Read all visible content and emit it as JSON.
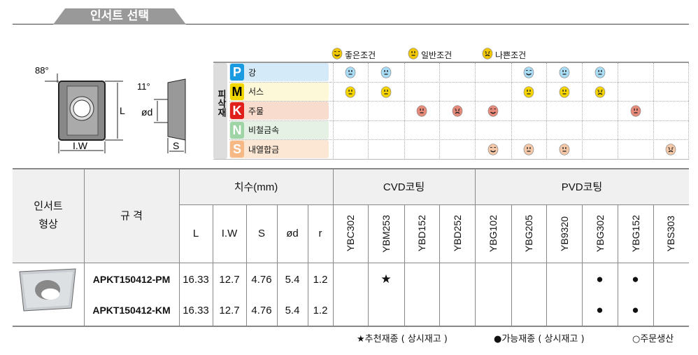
{
  "title": "인서트 선택",
  "diagram": {
    "angle_top": "88°",
    "angle_side": "11°",
    "label_L": "L",
    "label_IW": "I.W",
    "label_d": "ød",
    "label_S": "S"
  },
  "condition_legend": [
    {
      "icon": "good-face",
      "label": "좋은조건"
    },
    {
      "icon": "normal-face",
      "label": "일반조건"
    },
    {
      "icon": "bad-face",
      "label": "나쁜조건"
    }
  ],
  "material_label": "피삭재",
  "materials": [
    {
      "code": "P",
      "name": "강",
      "color": "#1a9ae0",
      "bg": "#d4eaf8",
      "conditions": [
        "normal",
        "normal",
        "",
        "",
        "",
        "good",
        "normal",
        "normal",
        "",
        ""
      ]
    },
    {
      "code": "M",
      "name": "서스",
      "color": "#f2d600",
      "bg": "#fdf9d8",
      "conditions": [
        "normal",
        "normal",
        "",
        "",
        "",
        "normal",
        "normal",
        "bad",
        "",
        ""
      ]
    },
    {
      "code": "K",
      "name": "주물",
      "color": "#e0201a",
      "bg": "#f8dccd",
      "conditions": [
        "",
        "",
        "normal",
        "bad",
        "good",
        "",
        "",
        "",
        "normal",
        ""
      ]
    },
    {
      "code": "N",
      "name": "비철금속",
      "color": "#9fd4a6",
      "bg": "#e4f1e4",
      "conditions": [
        "",
        "",
        "",
        "",
        "",
        "",
        "",
        "",
        "",
        ""
      ]
    },
    {
      "code": "S",
      "name": "내열합금",
      "color": "#f6b884",
      "bg": "#fbe7d3",
      "conditions": [
        "",
        "",
        "",
        "",
        "good",
        "normal",
        "normal",
        "",
        "",
        "bad"
      ]
    }
  ],
  "table": {
    "col_shape": "인서트\n형상",
    "col_spec": "규 격",
    "col_dims": "치수(mm)",
    "dims": [
      "L",
      "I.W",
      "S",
      "ød",
      "r"
    ],
    "cvd": "CVD코팅",
    "pvd": "PVD코팅",
    "grades": [
      "YBC302",
      "YBM253",
      "YBD152",
      "YBD252",
      "YBG102",
      "YBG205",
      "YB9320",
      "YBG302",
      "YBG152",
      "YBS303"
    ],
    "rows": [
      {
        "spec": "APKT150412-PM",
        "dims": [
          "16.33",
          "12.7",
          "4.76",
          "5.4",
          "1.2"
        ],
        "marks": [
          "",
          "★",
          "",
          "",
          "",
          "",
          "",
          "●",
          "●",
          ""
        ]
      },
      {
        "spec": "APKT150412-KM",
        "dims": [
          "16.33",
          "12.7",
          "4.76",
          "5.4",
          "1.2"
        ],
        "marks": [
          "",
          "",
          "",
          "",
          "",
          "",
          "",
          "●",
          "●",
          ""
        ]
      }
    ]
  },
  "footer": [
    "★추천재종 ( 상시재고 )",
    "●가능재종 ( 상시재고 )",
    "○주문생산"
  ]
}
